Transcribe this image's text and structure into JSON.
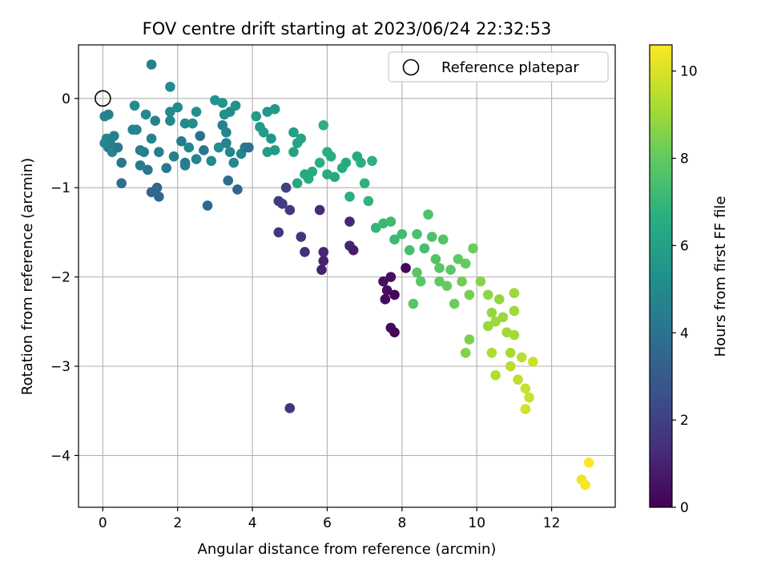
{
  "chart_data": {
    "type": "scatter",
    "title": "FOV centre drift starting at 2023/06/24 22:32:53",
    "xlabel": "Angular distance from reference (arcmin)",
    "ylabel": "Rotation from reference (arcmin)",
    "xlim": [
      -0.65,
      13.7
    ],
    "ylim": [
      -4.58,
      0.6
    ],
    "xticks": [
      0,
      2,
      4,
      6,
      8,
      10,
      12
    ],
    "yticks": [
      0,
      -1,
      -2,
      -3,
      -4
    ],
    "grid": true,
    "legend": {
      "label": "Reference platepar",
      "position": "top-right"
    },
    "reference_point": {
      "x": 0,
      "y": 0
    },
    "colorbar": {
      "label": "Hours from first FF file",
      "colormap": "viridis",
      "range": [
        0,
        10.6
      ],
      "ticks": [
        0,
        2,
        4,
        6,
        8,
        10
      ]
    },
    "points": [
      {
        "x": 0.05,
        "y": -0.2,
        "c": 4.8
      },
      {
        "x": 0.1,
        "y": -0.45,
        "c": 4.9
      },
      {
        "x": 0.2,
        "y": -0.5,
        "c": 4.7
      },
      {
        "x": 0.3,
        "y": -0.42,
        "c": 4.6
      },
      {
        "x": 0.15,
        "y": -0.55,
        "c": 4.5
      },
      {
        "x": 0.25,
        "y": -0.6,
        "c": 4.8
      },
      {
        "x": 0.05,
        "y": -0.5,
        "c": 4.9
      },
      {
        "x": 0.4,
        "y": -0.55,
        "c": 4.4
      },
      {
        "x": 0.5,
        "y": -0.72,
        "c": 4.2
      },
      {
        "x": 0.5,
        "y": -0.95,
        "c": 3.9
      },
      {
        "x": 0.15,
        "y": -0.18,
        "c": 4.6
      },
      {
        "x": 0.9,
        "y": -0.35,
        "c": 4.6
      },
      {
        "x": 0.85,
        "y": -0.08,
        "c": 5.1
      },
      {
        "x": 1.1,
        "y": -0.6,
        "c": 4.5
      },
      {
        "x": 1.2,
        "y": -0.8,
        "c": 4.2
      },
      {
        "x": 1.3,
        "y": -1.05,
        "c": 3.5
      },
      {
        "x": 1.45,
        "y": -1.0,
        "c": 3.5
      },
      {
        "x": 1.5,
        "y": -1.1,
        "c": 3.6
      },
      {
        "x": 1.0,
        "y": -0.58,
        "c": 4.5
      },
      {
        "x": 1.3,
        "y": 0.38,
        "c": 4.6
      },
      {
        "x": 1.8,
        "y": 0.13,
        "c": 5.1
      },
      {
        "x": 1.15,
        "y": -0.18,
        "c": 5.0
      },
      {
        "x": 1.3,
        "y": -0.45,
        "c": 4.8
      },
      {
        "x": 1.5,
        "y": -0.6,
        "c": 4.5
      },
      {
        "x": 1.7,
        "y": -0.78,
        "c": 4.3
      },
      {
        "x": 1.4,
        "y": -0.25,
        "c": 4.7
      },
      {
        "x": 1.8,
        "y": -0.25,
        "c": 4.9
      },
      {
        "x": 1.9,
        "y": -0.65,
        "c": 4.6
      },
      {
        "x": 2.1,
        "y": -0.48,
        "c": 4.4
      },
      {
        "x": 2.2,
        "y": -0.75,
        "c": 4.6
      },
      {
        "x": 1.8,
        "y": -0.15,
        "c": 5.0
      },
      {
        "x": 2.0,
        "y": -0.1,
        "c": 5.1
      },
      {
        "x": 2.2,
        "y": -0.28,
        "c": 5.0
      },
      {
        "x": 2.3,
        "y": -0.55,
        "c": 4.9
      },
      {
        "x": 2.4,
        "y": -0.28,
        "c": 5.2
      },
      {
        "x": 2.5,
        "y": -0.15,
        "c": 5.3
      },
      {
        "x": 2.6,
        "y": -0.42,
        "c": 3.9
      },
      {
        "x": 2.7,
        "y": -0.58,
        "c": 4.2
      },
      {
        "x": 2.8,
        "y": -1.2,
        "c": 3.6
      },
      {
        "x": 2.9,
        "y": -0.7,
        "c": 5.0
      },
      {
        "x": 2.5,
        "y": -0.68,
        "c": 4.8
      },
      {
        "x": 3.0,
        "y": -0.02,
        "c": 5.4
      },
      {
        "x": 3.2,
        "y": -0.3,
        "c": 4.6
      },
      {
        "x": 3.3,
        "y": -0.5,
        "c": 4.7
      },
      {
        "x": 3.1,
        "y": -0.55,
        "c": 5.2
      },
      {
        "x": 3.35,
        "y": -0.92,
        "c": 3.8
      },
      {
        "x": 3.4,
        "y": -0.15,
        "c": 5.1
      },
      {
        "x": 3.4,
        "y": -0.6,
        "c": 4.9
      },
      {
        "x": 3.5,
        "y": -0.72,
        "c": 4.9
      },
      {
        "x": 3.6,
        "y": -1.02,
        "c": 3.6
      },
      {
        "x": 3.7,
        "y": -0.62,
        "c": 4.9
      },
      {
        "x": 3.8,
        "y": -0.55,
        "c": 4.2
      },
      {
        "x": 3.9,
        "y": -0.55,
        "c": 4.1
      },
      {
        "x": 3.2,
        "y": -0.05,
        "c": 5.5
      },
      {
        "x": 3.55,
        "y": -0.08,
        "c": 5.4
      },
      {
        "x": 3.25,
        "y": -0.18,
        "c": 5.3
      },
      {
        "x": 3.3,
        "y": -0.38,
        "c": 4.8
      },
      {
        "x": 2.2,
        "y": -0.72,
        "c": 4.5
      },
      {
        "x": 1.0,
        "y": -0.75,
        "c": 4.4
      },
      {
        "x": 0.8,
        "y": -0.35,
        "c": 4.8
      },
      {
        "x": 4.1,
        "y": -0.2,
        "c": 5.8
      },
      {
        "x": 4.2,
        "y": -0.32,
        "c": 5.7
      },
      {
        "x": 4.3,
        "y": -0.38,
        "c": 5.8
      },
      {
        "x": 4.4,
        "y": -0.15,
        "c": 5.6
      },
      {
        "x": 4.4,
        "y": -0.6,
        "c": 5.9
      },
      {
        "x": 4.6,
        "y": -0.12,
        "c": 5.7
      },
      {
        "x": 4.5,
        "y": -0.45,
        "c": 5.6
      },
      {
        "x": 4.6,
        "y": -0.58,
        "c": 5.8
      },
      {
        "x": 5.1,
        "y": -0.38,
        "c": 6.0
      },
      {
        "x": 5.1,
        "y": -0.6,
        "c": 6.1
      },
      {
        "x": 5.2,
        "y": -0.5,
        "c": 6.1
      },
      {
        "x": 5.3,
        "y": -0.45,
        "c": 6.2
      },
      {
        "x": 5.2,
        "y": -0.95,
        "c": 6.3
      },
      {
        "x": 5.4,
        "y": -0.85,
        "c": 6.4
      },
      {
        "x": 5.5,
        "y": -0.9,
        "c": 6.5
      },
      {
        "x": 5.6,
        "y": -0.82,
        "c": 6.6
      },
      {
        "x": 5.8,
        "y": -0.72,
        "c": 6.7
      },
      {
        "x": 5.9,
        "y": -0.3,
        "c": 6.8
      },
      {
        "x": 6.0,
        "y": -0.6,
        "c": 6.7
      },
      {
        "x": 6.1,
        "y": -0.65,
        "c": 6.6
      },
      {
        "x": 6.0,
        "y": -0.85,
        "c": 6.6
      },
      {
        "x": 6.2,
        "y": -0.88,
        "c": 6.5
      },
      {
        "x": 6.4,
        "y": -0.78,
        "c": 6.6
      },
      {
        "x": 6.5,
        "y": -0.72,
        "c": 6.5
      },
      {
        "x": 6.6,
        "y": -1.1,
        "c": 6.7
      },
      {
        "x": 6.8,
        "y": -0.65,
        "c": 6.5
      },
      {
        "x": 6.9,
        "y": -0.72,
        "c": 6.7
      },
      {
        "x": 7.0,
        "y": -0.95,
        "c": 6.8
      },
      {
        "x": 7.1,
        "y": -1.15,
        "c": 6.9
      },
      {
        "x": 7.2,
        "y": -0.7,
        "c": 6.8
      },
      {
        "x": 7.3,
        "y": -1.45,
        "c": 7.0
      },
      {
        "x": 7.5,
        "y": -1.4,
        "c": 7.1
      },
      {
        "x": 7.7,
        "y": -1.38,
        "c": 7.2
      },
      {
        "x": 7.8,
        "y": -1.58,
        "c": 7.2
      },
      {
        "x": 8.0,
        "y": -1.52,
        "c": 7.3
      },
      {
        "x": 8.2,
        "y": -1.7,
        "c": 7.4
      },
      {
        "x": 8.4,
        "y": -1.52,
        "c": 7.5
      },
      {
        "x": 8.6,
        "y": -1.68,
        "c": 7.4
      },
      {
        "x": 8.7,
        "y": -1.3,
        "c": 7.6
      },
      {
        "x": 8.8,
        "y": -1.55,
        "c": 7.6
      },
      {
        "x": 8.9,
        "y": -1.8,
        "c": 7.7
      },
      {
        "x": 9.0,
        "y": -1.9,
        "c": 7.8
      },
      {
        "x": 9.1,
        "y": -1.58,
        "c": 7.7
      },
      {
        "x": 9.3,
        "y": -1.92,
        "c": 7.9
      },
      {
        "x": 9.5,
        "y": -1.8,
        "c": 8.0
      },
      {
        "x": 9.7,
        "y": -1.85,
        "c": 8.1
      },
      {
        "x": 9.9,
        "y": -1.68,
        "c": 8.2
      },
      {
        "x": 8.3,
        "y": -2.3,
        "c": 7.8
      },
      {
        "x": 8.4,
        "y": -1.95,
        "c": 7.9
      },
      {
        "x": 8.5,
        "y": -2.05,
        "c": 7.9
      },
      {
        "x": 9.0,
        "y": -2.05,
        "c": 8.0
      },
      {
        "x": 9.2,
        "y": -2.1,
        "c": 8.1
      },
      {
        "x": 9.4,
        "y": -2.3,
        "c": 8.2
      },
      {
        "x": 9.6,
        "y": -2.05,
        "c": 8.3
      },
      {
        "x": 9.8,
        "y": -2.2,
        "c": 8.4
      },
      {
        "x": 9.8,
        "y": -2.7,
        "c": 8.5
      },
      {
        "x": 9.7,
        "y": -2.85,
        "c": 8.6
      },
      {
        "x": 10.1,
        "y": -2.05,
        "c": 8.7
      },
      {
        "x": 10.3,
        "y": -2.2,
        "c": 8.8
      },
      {
        "x": 10.4,
        "y": -2.4,
        "c": 8.9
      },
      {
        "x": 10.5,
        "y": -2.5,
        "c": 9.0
      },
      {
        "x": 10.6,
        "y": -2.25,
        "c": 8.9
      },
      {
        "x": 10.7,
        "y": -2.45,
        "c": 9.0
      },
      {
        "x": 10.8,
        "y": -2.62,
        "c": 9.1
      },
      {
        "x": 10.9,
        "y": -2.85,
        "c": 9.2
      },
      {
        "x": 11.0,
        "y": -2.18,
        "c": 9.0
      },
      {
        "x": 11.0,
        "y": -2.65,
        "c": 9.2
      },
      {
        "x": 11.0,
        "y": -2.38,
        "c": 9.1
      },
      {
        "x": 10.3,
        "y": -2.55,
        "c": 9.0
      },
      {
        "x": 10.4,
        "y": -2.85,
        "c": 9.3
      },
      {
        "x": 10.5,
        "y": -3.1,
        "c": 9.4
      },
      {
        "x": 10.9,
        "y": -3.0,
        "c": 9.5
      },
      {
        "x": 11.1,
        "y": -3.15,
        "c": 9.6
      },
      {
        "x": 11.2,
        "y": -2.9,
        "c": 9.5
      },
      {
        "x": 11.3,
        "y": -3.25,
        "c": 9.7
      },
      {
        "x": 11.4,
        "y": -3.35,
        "c": 9.8
      },
      {
        "x": 11.3,
        "y": -3.48,
        "c": 9.9
      },
      {
        "x": 11.5,
        "y": -2.95,
        "c": 9.8
      },
      {
        "x": 12.8,
        "y": -4.27,
        "c": 10.4
      },
      {
        "x": 12.9,
        "y": -4.33,
        "c": 10.5
      },
      {
        "x": 13.0,
        "y": -4.08,
        "c": 10.6
      },
      {
        "x": 4.7,
        "y": -1.5,
        "c": 1.6
      },
      {
        "x": 4.7,
        "y": -1.15,
        "c": 1.8
      },
      {
        "x": 4.9,
        "y": -1.0,
        "c": 2.1
      },
      {
        "x": 4.8,
        "y": -1.18,
        "c": 1.9
      },
      {
        "x": 5.0,
        "y": -1.25,
        "c": 1.8
      },
      {
        "x": 5.0,
        "y": -3.47,
        "c": 1.6
      },
      {
        "x": 5.3,
        "y": -1.55,
        "c": 1.5
      },
      {
        "x": 5.4,
        "y": -1.72,
        "c": 1.4
      },
      {
        "x": 5.8,
        "y": -1.25,
        "c": 1.3
      },
      {
        "x": 5.9,
        "y": -1.72,
        "c": 1.1
      },
      {
        "x": 5.9,
        "y": -1.82,
        "c": 1.0
      },
      {
        "x": 5.85,
        "y": -1.92,
        "c": 1.0
      },
      {
        "x": 6.6,
        "y": -1.38,
        "c": 1.2
      },
      {
        "x": 6.6,
        "y": -1.65,
        "c": 1.1
      },
      {
        "x": 6.7,
        "y": -1.7,
        "c": 0.9
      },
      {
        "x": 7.5,
        "y": -2.05,
        "c": 0.5
      },
      {
        "x": 7.6,
        "y": -2.15,
        "c": 0.4
      },
      {
        "x": 7.55,
        "y": -2.25,
        "c": 0.3
      },
      {
        "x": 7.7,
        "y": -2.0,
        "c": 0.4
      },
      {
        "x": 7.8,
        "y": -2.2,
        "c": 0.2
      },
      {
        "x": 7.7,
        "y": -2.57,
        "c": 0.3
      },
      {
        "x": 7.8,
        "y": -2.62,
        "c": 0.2
      },
      {
        "x": 8.1,
        "y": -1.9,
        "c": 0.2
      }
    ]
  }
}
